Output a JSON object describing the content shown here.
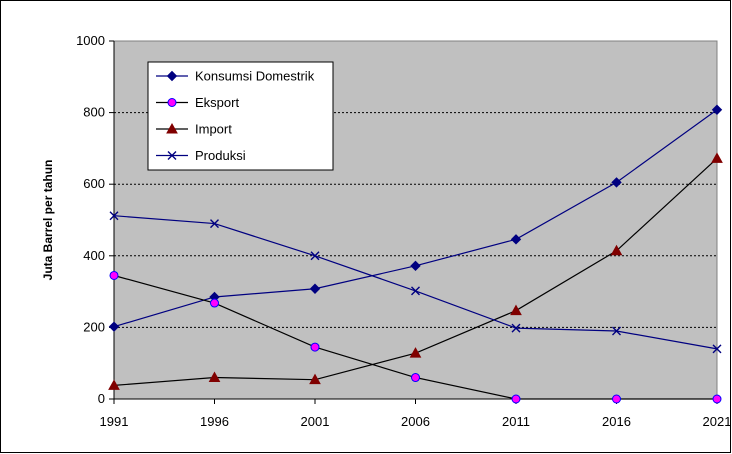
{
  "chart_data": {
    "type": "line",
    "title": "",
    "xlabel": "",
    "ylabel": "Juta Barrel per tahun",
    "x": [
      "1991",
      "1996",
      "2001",
      "2006",
      "2011",
      "2016",
      "2021"
    ],
    "ylim": [
      0,
      1000
    ],
    "yticks": [
      "0",
      "200",
      "400",
      "600",
      "800",
      "1000"
    ],
    "grid": "horizontal",
    "legend_position": "top-left",
    "plot_background": "#c0c0c0",
    "series": [
      {
        "name": "Konsumsi Domestrik",
        "values": [
          202,
          285,
          308,
          372,
          446,
          605,
          808
        ],
        "color": "#000080",
        "marker": "diamond",
        "marker_color": "#000080"
      },
      {
        "name": "Eksport",
        "values": [
          345,
          268,
          145,
          60,
          0,
          0,
          0
        ],
        "color": "#000000",
        "marker": "circle",
        "marker_color": "#ff00ff"
      },
      {
        "name": "Import",
        "values": [
          38,
          60,
          54,
          128,
          247,
          414,
          672
        ],
        "color": "#000000",
        "marker": "triangle",
        "marker_color": "#800000"
      },
      {
        "name": "Produksi",
        "values": [
          512,
          490,
          400,
          302,
          198,
          190,
          140
        ],
        "color": "#000080",
        "marker": "cross",
        "marker_color": "#000080"
      }
    ]
  }
}
